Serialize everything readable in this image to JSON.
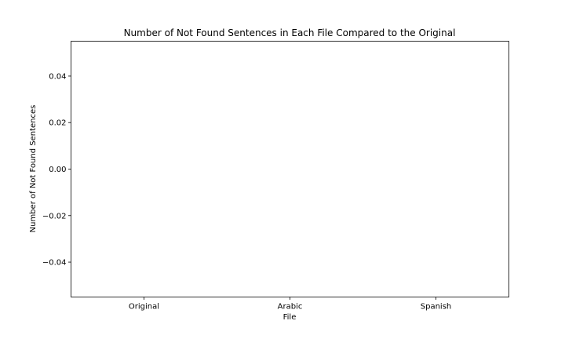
{
  "chart_data": {
    "type": "bar",
    "title": "Number of Not Found Sentences in Each File Compared to the Original",
    "xlabel": "File",
    "ylabel": "Number of Not Found Sentences",
    "categories": [
      "Original",
      "Arabic",
      "Spanish"
    ],
    "values": [
      0,
      0,
      0
    ],
    "ylim": [
      -0.055,
      0.055
    ],
    "yticks": [
      "0.04",
      "0.02",
      "0.00",
      "−0.02",
      "−0.04"
    ],
    "ytick_values": [
      0.04,
      0.02,
      0.0,
      -0.02,
      -0.04
    ],
    "grid": false,
    "legend": "none"
  }
}
